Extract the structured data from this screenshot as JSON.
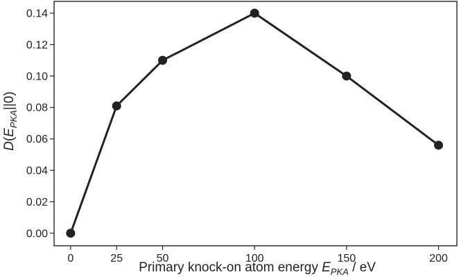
{
  "chart_data": {
    "type": "line",
    "xlabel": {
      "prefix": "Primary knock-on atom energy ",
      "var": "E",
      "sub": "PKA",
      "suffix": " / eV"
    },
    "ylabel": {
      "var": "D",
      "open": "(",
      "inner_var": "E",
      "sub": "PKA",
      "close": "||0)"
    },
    "x_ticks": [
      "0",
      "25",
      "50",
      "100",
      "150",
      "200"
    ],
    "y_ticks": [
      "0.00",
      "0.02",
      "0.04",
      "0.06",
      "0.08",
      "0.10",
      "0.12",
      "0.14"
    ],
    "xlim": [
      -9,
      210
    ],
    "ylim": [
      -0.008,
      0.1475
    ],
    "grid": false,
    "series": [
      {
        "x": [
          0,
          25,
          50,
          100,
          150,
          200
        ],
        "y": [
          0.0,
          0.081,
          0.11,
          0.14,
          0.1,
          0.056
        ]
      }
    ],
    "colors": {
      "line": "#222222",
      "marker": "#222222",
      "axis": "#222222"
    }
  }
}
